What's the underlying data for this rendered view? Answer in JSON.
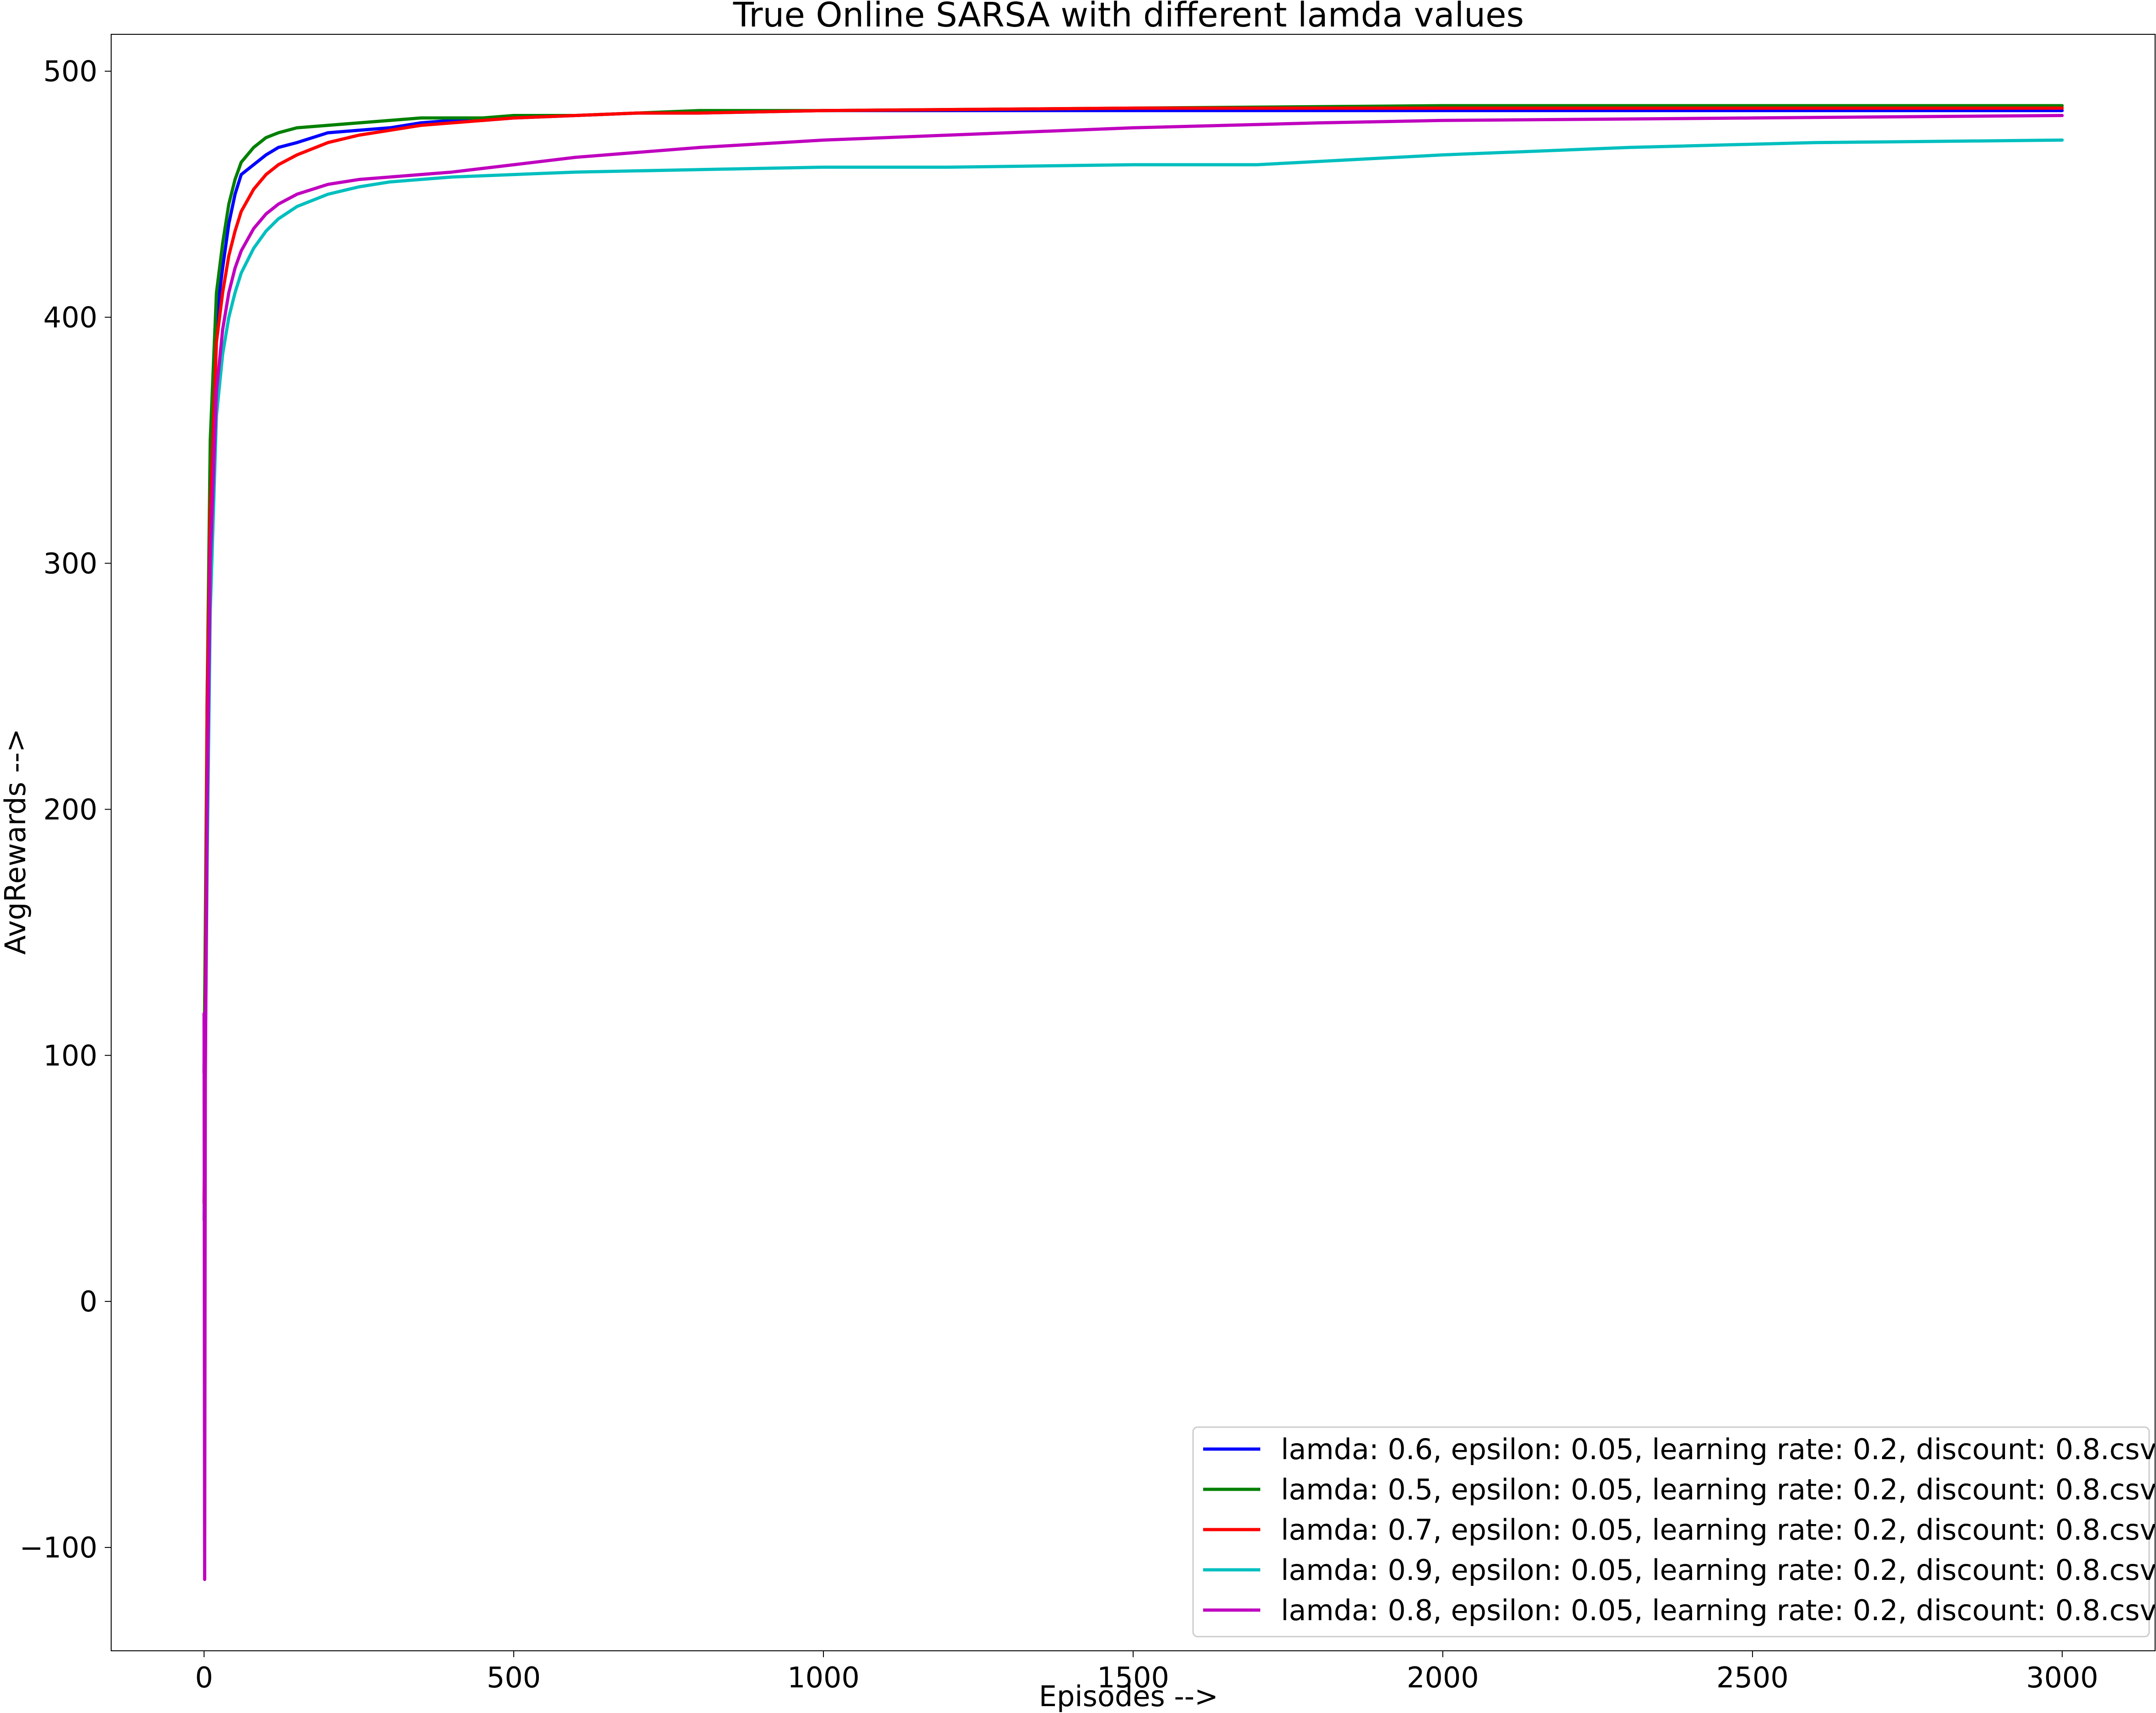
{
  "chart_data": {
    "type": "line",
    "title": "True Online SARSA with different lamda values",
    "xlabel": "Episodes -->",
    "ylabel": "AvgRewards -->",
    "xlim": [
      -150,
      3150
    ],
    "ylim": [
      -142,
      515
    ],
    "xticks": [
      0,
      500,
      1000,
      1500,
      2000,
      2500,
      3000
    ],
    "yticks": [
      -100,
      0,
      100,
      200,
      300,
      400,
      500
    ],
    "xtick_labels": [
      "0",
      "500",
      "1000",
      "1500",
      "2000",
      "2500",
      "3000"
    ],
    "ytick_labels": [
      "−100",
      "0",
      "100",
      "200",
      "300",
      "400",
      "500"
    ],
    "grid": false,
    "legend_position": "lower-right",
    "series": [
      {
        "name": "lamda: 0.6, epsilon: 0.05, learning rate: 0.2, discount: 0.8.csv",
        "color": "#0000ff",
        "x": [
          0,
          2,
          5,
          10,
          20,
          30,
          40,
          50,
          60,
          80,
          100,
          120,
          150,
          200,
          250,
          300,
          350,
          400,
          450,
          500,
          600,
          700,
          800,
          1000,
          1500,
          2000,
          2500,
          3000
        ],
        "y": [
          93,
          120,
          246,
          330,
          400,
          420,
          438,
          450,
          458,
          462,
          466,
          469,
          471,
          475,
          476,
          477,
          479,
          480,
          480,
          481,
          482,
          483,
          483,
          484,
          484,
          484,
          484,
          484
        ]
      },
      {
        "name": "lamda: 0.5, epsilon: 0.05, learning rate: 0.2, discount: 0.8.csv",
        "color": "#008000",
        "x": [
          0,
          2,
          5,
          10,
          20,
          30,
          40,
          50,
          60,
          80,
          100,
          120,
          150,
          200,
          250,
          300,
          350,
          400,
          450,
          500,
          600,
          700,
          800,
          1000,
          1500,
          2000,
          2500,
          3000
        ],
        "y": [
          93,
          150,
          246,
          350,
          410,
          430,
          446,
          456,
          463,
          469,
          473,
          475,
          477,
          478,
          479,
          480,
          481,
          481,
          481,
          482,
          482,
          483,
          484,
          484,
          485,
          486,
          486,
          486
        ]
      },
      {
        "name": "lamda: 0.7, epsilon: 0.05, learning rate: 0.2, discount: 0.8.csv",
        "color": "#ff0000",
        "x": [
          0,
          2,
          5,
          10,
          20,
          30,
          40,
          50,
          60,
          80,
          100,
          120,
          150,
          200,
          250,
          300,
          350,
          400,
          450,
          500,
          600,
          700,
          800,
          1000,
          1500,
          2000,
          2500,
          3000
        ],
        "y": [
          40,
          110,
          240,
          320,
          390,
          410,
          425,
          435,
          443,
          452,
          458,
          462,
          466,
          471,
          474,
          476,
          478,
          479,
          480,
          481,
          482,
          483,
          483,
          484,
          485,
          485,
          485,
          485
        ]
      },
      {
        "name": "lamda: 0.9, epsilon: 0.05, learning rate: 0.2, discount: 0.8.csv",
        "color": "#00bfbf",
        "x": [
          0,
          2,
          5,
          10,
          20,
          30,
          40,
          50,
          60,
          80,
          100,
          120,
          150,
          200,
          250,
          300,
          400,
          500,
          600,
          800,
          1000,
          1200,
          1500,
          1700,
          2000,
          2300,
          2600,
          3000
        ],
        "y": [
          33,
          100,
          180,
          280,
          360,
          385,
          400,
          410,
          418,
          428,
          435,
          440,
          445,
          450,
          453,
          455,
          457,
          458,
          459,
          460,
          461,
          461,
          462,
          462,
          466,
          469,
          471,
          472
        ]
      },
      {
        "name": "lamda: 0.8, epsilon: 0.05, learning rate: 0.2, discount: 0.8.csv",
        "color": "#bf00bf",
        "x": [
          0,
          1,
          2,
          5,
          10,
          20,
          30,
          40,
          50,
          60,
          80,
          100,
          120,
          150,
          200,
          250,
          300,
          400,
          500,
          600,
          800,
          1000,
          1200,
          1500,
          1800,
          2000,
          2500,
          3000
        ],
        "y": [
          117,
          -113,
          90,
          200,
          300,
          370,
          395,
          410,
          420,
          427,
          436,
          442,
          446,
          450,
          454,
          456,
          457,
          459,
          462,
          465,
          469,
          472,
          474,
          477,
          479,
          480,
          481,
          482
        ]
      }
    ]
  }
}
